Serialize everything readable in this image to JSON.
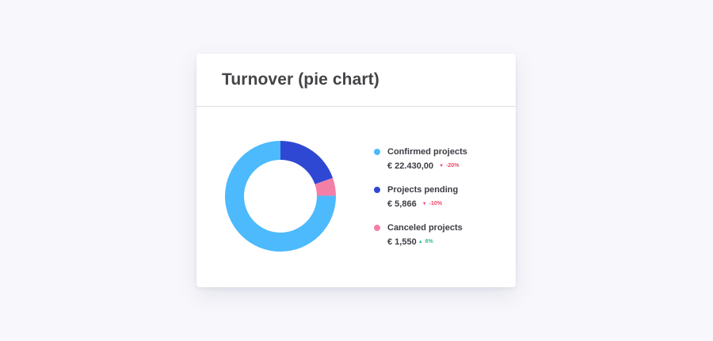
{
  "card": {
    "title": "Turnover (pie chart)"
  },
  "chart_data": {
    "type": "pie",
    "title": "Turnover (pie chart)",
    "categories": [
      "Confirmed projects",
      "Projects pending",
      "Canceled projects"
    ],
    "values": [
      22430.0,
      5866,
      1550
    ],
    "colors": [
      "#4cbafc",
      "#2f48d3",
      "#f37fa7"
    ],
    "donut": true
  },
  "legend": [
    {
      "label": "Confirmed projects",
      "value": "€ 22.430,00",
      "change": "-20%",
      "direction": "down",
      "arrow": "▼",
      "dot_color": "#4cbafc",
      "change_color": "#f2476b"
    },
    {
      "label": "Projects pending",
      "value": "€ 5,866",
      "change": "-10%",
      "direction": "down",
      "arrow": "▼",
      "dot_color": "#2f48d3",
      "change_color": "#f2476b"
    },
    {
      "label": "Canceled projects",
      "value": "€ 1,550",
      "change": "6%",
      "direction": "up",
      "arrow": "▲",
      "dot_color": "#f37fa7",
      "change_color": "#2bbf8e"
    }
  ]
}
